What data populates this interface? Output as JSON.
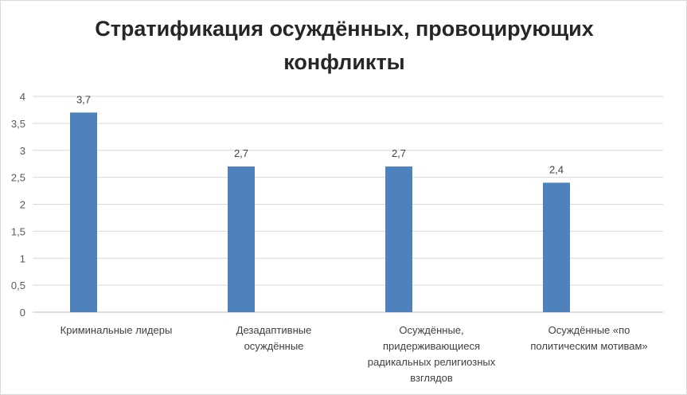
{
  "chart_data": {
    "type": "bar",
    "title": "Стратификация осуждённых, провоцирующих\nконфликты",
    "categories": [
      "Криминальные лидеры",
      "Дезадаптивные\nосуждённые",
      "Осуждённые,\nпридерживающиеся\nрадикальных религиозных\nвзглядов",
      "Осуждённые «по\nполитическим мотивам»"
    ],
    "values": [
      3.7,
      2.7,
      2.7,
      2.4
    ],
    "data_labels": [
      "3,7",
      "2,7",
      "2,7",
      "2,4"
    ],
    "yticks": [
      "0",
      "0,5",
      "1",
      "1,5",
      "2",
      "2,5",
      "3",
      "3,5",
      "4"
    ],
    "ylim": [
      0,
      4
    ],
    "xlabel": "",
    "ylabel": "",
    "grid": true,
    "bar_color": "#4f81bd"
  }
}
